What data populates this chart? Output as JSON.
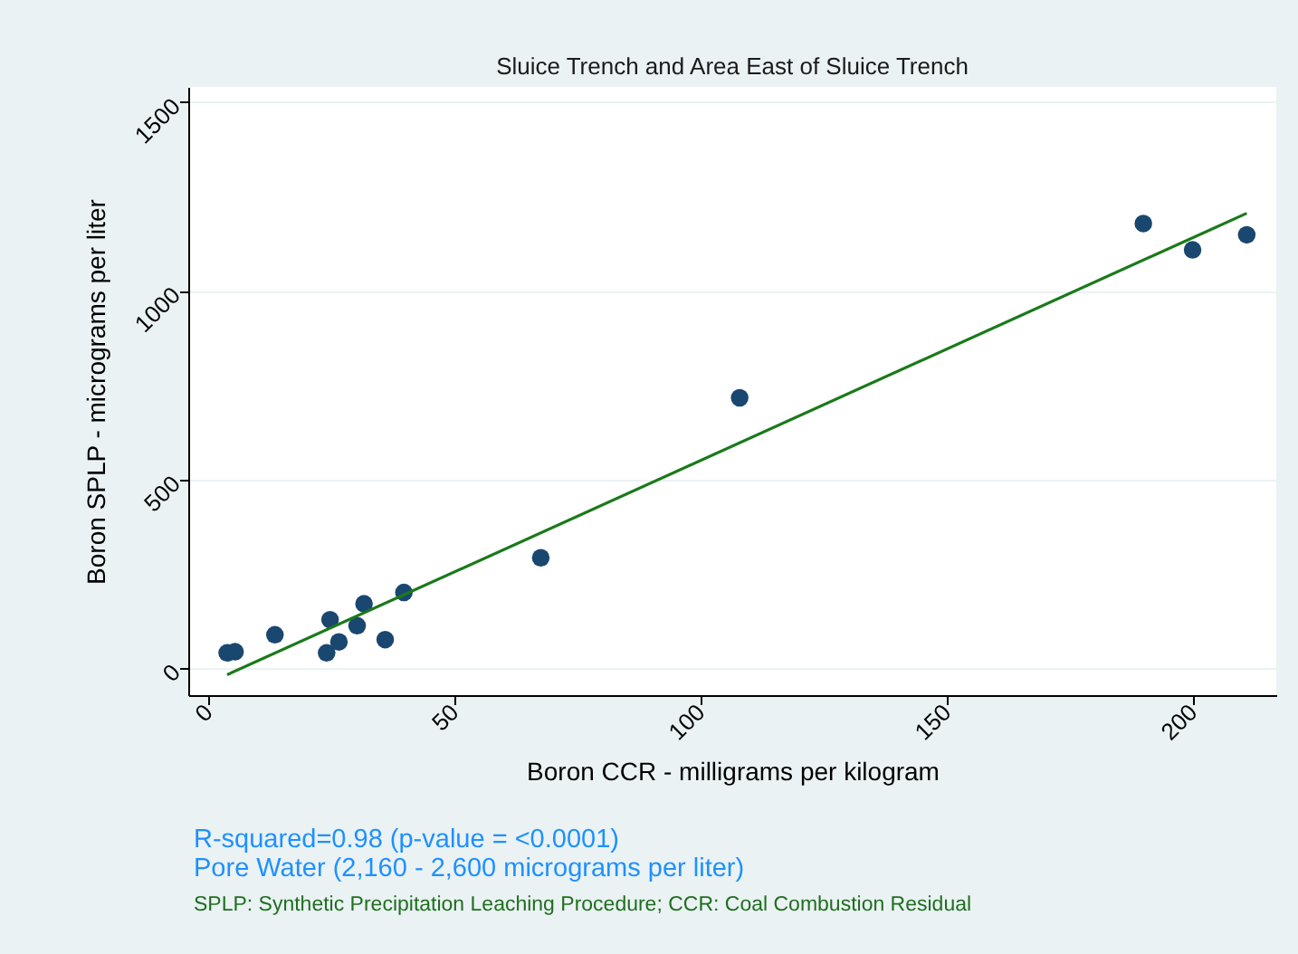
{
  "chart_data": {
    "type": "scatter",
    "title": "Sluice Trench and Area East of Sluice Trench",
    "xlabel": "Boron CCR - milligrams per kilogram",
    "ylabel": "Boron SPLP - micrograms per liter",
    "xlim": [
      -4,
      217
    ],
    "xticks": [
      0,
      50,
      100,
      150,
      200
    ],
    "ylim": [
      -72,
      1540
    ],
    "yticks": [
      0,
      500,
      1000,
      1500
    ],
    "grid": "y",
    "series": [
      {
        "color": "#1a476f",
        "marker": "circle",
        "x": [
          3.9,
          5.5,
          13.6,
          24.1,
          24.8,
          26.6,
          30.3,
          31.7,
          36,
          39.8,
          67.6,
          108,
          190,
          200,
          211
        ],
        "values": [
          40,
          43,
          88,
          40,
          128,
          69,
          112,
          170,
          75,
          200,
          292,
          716,
          1178,
          1108,
          1148
        ]
      },
      {
        "type": "line",
        "color": "#1a7a1a",
        "marker": "none",
        "x": [
          3.9,
          211
        ],
        "values": [
          -18,
          1205
        ]
      }
    ],
    "annotations": [
      "R-squared=0.98 (p-value = <0.0001)",
      "Pore Water (2,160 - 2,600 micrograms per liter)",
      "SPLP: Synthetic Precipitation Leaching Procedure; CCR: Coal Combustion Residual"
    ]
  }
}
